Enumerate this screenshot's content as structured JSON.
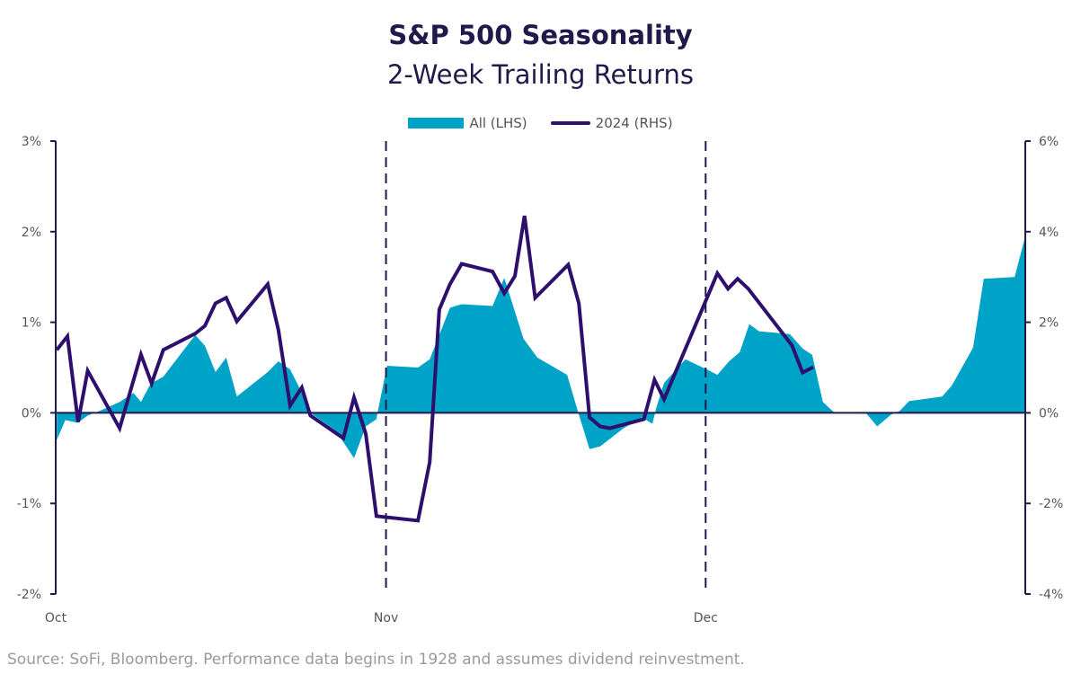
{
  "colors": {
    "title": "#1f1a4a",
    "area": "#00a3c8",
    "line": "#2e0f6e",
    "axis": "#1f1a4a"
  },
  "footer": {
    "source": "Source: SoFi, Bloomberg. Performance data begins in 1928 and assumes dividend reinvestment."
  },
  "chart_data": {
    "type": "area",
    "title": "S&P 500 Seasonality",
    "subtitle": "2-Week Trailing Returns",
    "xlabel": "",
    "ylabel": "",
    "x_unit": "days since Oct 1",
    "xlim": [
      0,
      91
    ],
    "x_ticks": [
      {
        "x": 0,
        "label": "Oct"
      },
      {
        "x": 31,
        "label": "Nov"
      },
      {
        "x": 61,
        "label": "Dec"
      }
    ],
    "vertical_dashed_lines_at": [
      31,
      61
    ],
    "y_left": {
      "lim": [
        -2,
        3
      ],
      "ticks": [
        -2,
        -1,
        0,
        1,
        2,
        3
      ],
      "tick_labels": [
        "-2%",
        "-1%",
        "0%",
        "1%",
        "2%",
        "3%"
      ]
    },
    "y_right": {
      "lim": [
        -4,
        6
      ],
      "ticks": [
        -4,
        -2,
        0,
        2,
        4,
        6
      ],
      "tick_labels": [
        "-4%",
        "-2%",
        "0%",
        "2%",
        "4%",
        "6%"
      ]
    },
    "legend": {
      "placement": "top-center",
      "entries": [
        "All (LHS)",
        "2024 (RHS)"
      ]
    },
    "grid": false,
    "series": [
      {
        "name": "All (LHS)",
        "type": "area",
        "axis": "left",
        "x": [
          0.1,
          0.9,
          2.1,
          3.0,
          4.1,
          6.0,
          7.3,
          8.0,
          8.9,
          10.1,
          13.1,
          14.0,
          15.0,
          16.0,
          17.0,
          19.9,
          20.9,
          22.0,
          22.9,
          23.9,
          26.3,
          28.0,
          29.1,
          30.1,
          30.2,
          31.1,
          34.0,
          35.1,
          37.0,
          38.1,
          41.0,
          42.1,
          43.9,
          45.2,
          48.0,
          49.0,
          50.1,
          51.1,
          53.3,
          55.0,
          56.0,
          56.4,
          57.1,
          59.1,
          61.1,
          62.1,
          63.2,
          64.2,
          65.1,
          66.0,
          68.9,
          70.1,
          71.0,
          72.0,
          73.1,
          76.1,
          77.1,
          78.4,
          79.2,
          80.1,
          83.2,
          84.1,
          86.1,
          87.1,
          90.0,
          91.0
        ],
        "y": [
          -0.3,
          -0.08,
          -0.11,
          -0.03,
          0.02,
          0.12,
          0.22,
          0.12,
          0.32,
          0.4,
          0.86,
          0.74,
          0.45,
          0.61,
          0.18,
          0.45,
          0.57,
          0.48,
          0.27,
          0.0,
          -0.2,
          -0.5,
          -0.15,
          -0.07,
          0.0,
          0.52,
          0.5,
          0.59,
          1.16,
          1.2,
          1.18,
          1.49,
          0.82,
          0.61,
          0.42,
          0.02,
          -0.4,
          -0.37,
          -0.17,
          -0.05,
          -0.12,
          0.07,
          0.33,
          0.59,
          0.48,
          0.42,
          0.57,
          0.67,
          0.98,
          0.9,
          0.87,
          0.71,
          0.64,
          0.12,
          0.0,
          -0.01,
          -0.15,
          -0.02,
          0.02,
          0.13,
          0.18,
          0.3,
          0.72,
          1.48,
          1.5,
          1.95
        ]
      },
      {
        "name": "2024 (RHS)",
        "type": "line",
        "axis": "right",
        "x": [
          0.1,
          1.1,
          2.1,
          3.0,
          6.0,
          8.0,
          9.0,
          10.1,
          13.1,
          14.0,
          15.0,
          16.0,
          17.0,
          19.9,
          20.9,
          22.0,
          23.1,
          23.9,
          27.0,
          28.0,
          29.1,
          30.1,
          34.0,
          35.1,
          36.0,
          37.0,
          38.1,
          41.0,
          42.1,
          43.1,
          44.0,
          45.0,
          48.1,
          49.1,
          50.1,
          51.1,
          52.0,
          55.2,
          56.2,
          57.1,
          62.1,
          63.1,
          64.0,
          65.0,
          69.1,
          70.1,
          71.1
        ],
        "y": [
          1.39,
          1.69,
          -0.2,
          0.93,
          -0.34,
          1.29,
          0.65,
          1.39,
          1.75,
          1.92,
          2.42,
          2.54,
          2.02,
          2.84,
          1.83,
          0.16,
          0.56,
          -0.06,
          -0.56,
          0.34,
          -0.46,
          -2.28,
          -2.38,
          -1.09,
          2.28,
          2.84,
          3.29,
          3.12,
          2.64,
          3.02,
          4.35,
          2.54,
          3.27,
          2.42,
          -0.1,
          -0.3,
          -0.34,
          -0.14,
          0.73,
          0.3,
          3.08,
          2.74,
          2.96,
          2.74,
          1.49,
          0.89,
          1.01
        ]
      }
    ]
  }
}
